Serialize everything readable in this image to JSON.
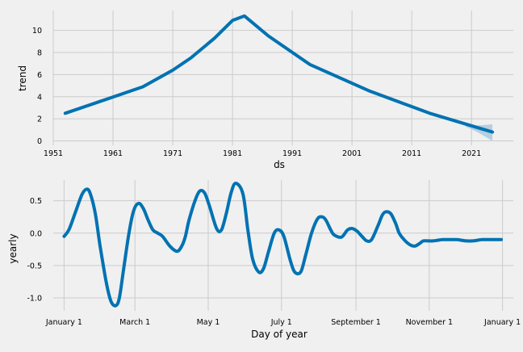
{
  "chart_data": [
    {
      "type": "line",
      "ylabel": "trend",
      "xlabel": "ds",
      "x_tick_labels": [
        "1951",
        "1961",
        "1971",
        "1981",
        "1991",
        "2001",
        "2011",
        "2021"
      ],
      "y_tick_labels": [
        "0",
        "2",
        "4",
        "6",
        "8",
        "10"
      ],
      "xlim": [
        1951,
        2028
      ],
      "ylim": [
        -0.4,
        11.8
      ],
      "grid": true,
      "colors": {
        "line": "#0072B2",
        "band": "#b6cfe0"
      },
      "series": [
        {
          "x": [
            1953,
            1959,
            1966,
            1971,
            1974,
            1978,
            1981,
            1983,
            1987,
            1994,
            2004,
            2014,
            2024.5
          ],
          "y": [
            2.5,
            3.6,
            4.9,
            6.4,
            7.5,
            9.3,
            10.9,
            11.3,
            9.5,
            6.9,
            4.5,
            2.5,
            0.8
          ]
        }
      ],
      "uncertainty": {
        "x": [
          2020,
          2022,
          2024.5
        ],
        "lower": [
          1.3,
          0.8,
          0.0
        ],
        "upper": [
          1.5,
          1.4,
          1.5
        ]
      }
    },
    {
      "type": "line",
      "ylabel": "yearly",
      "xlabel": "Day of year",
      "x_tick_labels": [
        "January 1",
        "March 1",
        "May 1",
        "July 1",
        "September 1",
        "November 1",
        "January 1"
      ],
      "x_tick_days": [
        0,
        59,
        120,
        181,
        243,
        304,
        365
      ],
      "y_tick_labels": [
        "-1.0",
        "-0.5",
        "0.0",
        "0.5"
      ],
      "y_ticks": [
        -1.0,
        -0.5,
        0.0,
        0.5
      ],
      "xlim": [
        -9,
        374
      ],
      "ylim": [
        -1.2,
        0.82
      ],
      "grid": true,
      "colors": {
        "line": "#0072B2"
      },
      "series": [
        {
          "x": [
            0,
            4,
            9,
            15,
            19,
            22,
            26,
            30,
            35,
            39,
            43,
            46,
            50,
            54,
            58,
            62,
            66,
            70,
            74,
            78,
            82,
            88,
            94,
            98,
            101,
            104,
            109,
            113,
            117,
            121,
            127,
            131,
            135,
            139,
            143,
            149,
            153,
            157,
            162,
            166,
            170,
            175,
            179,
            183,
            188,
            192,
            197,
            201,
            206,
            211,
            215,
            218,
            222,
            225,
            231,
            236,
            240,
            244,
            248,
            252,
            256,
            261,
            265,
            268,
            272,
            276,
            279,
            283,
            288,
            292,
            296,
            299,
            303,
            307,
            311,
            315,
            319,
            323,
            327,
            331,
            335,
            340,
            344,
            348,
            352,
            356,
            360,
            364
          ],
          "y": [
            -0.05,
            0.05,
            0.3,
            0.6,
            0.68,
            0.6,
            0.3,
            -0.2,
            -0.75,
            -1.05,
            -1.12,
            -1.0,
            -0.5,
            0.0,
            0.35,
            0.46,
            0.38,
            0.2,
            0.05,
            0.0,
            -0.05,
            -0.2,
            -0.28,
            -0.2,
            -0.05,
            0.2,
            0.5,
            0.65,
            0.62,
            0.42,
            0.07,
            0.05,
            0.3,
            0.62,
            0.77,
            0.6,
            0.05,
            -0.4,
            -0.6,
            -0.55,
            -0.3,
            0.0,
            0.05,
            -0.05,
            -0.4,
            -0.6,
            -0.6,
            -0.35,
            0.0,
            0.22,
            0.25,
            0.2,
            0.05,
            -0.03,
            -0.06,
            0.05,
            0.07,
            0.03,
            -0.05,
            -0.12,
            -0.1,
            0.1,
            0.28,
            0.33,
            0.3,
            0.15,
            0.0,
            -0.1,
            -0.18,
            -0.2,
            -0.16,
            -0.12,
            -0.12,
            -0.12,
            -0.11,
            -0.1,
            -0.1,
            -0.1,
            -0.1,
            -0.11,
            -0.12,
            -0.12,
            -0.11,
            -0.1,
            -0.1,
            -0.1,
            -0.1,
            -0.1
          ]
        }
      ]
    }
  ]
}
